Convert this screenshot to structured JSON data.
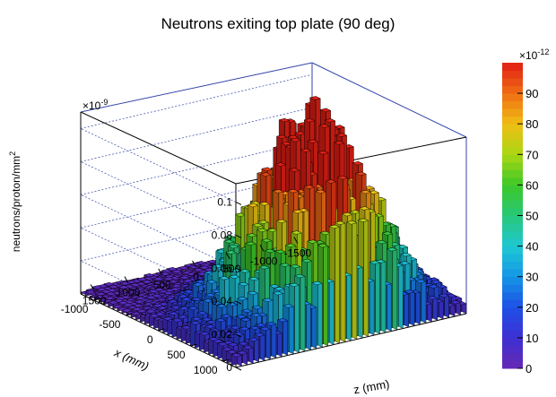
{
  "chart_data": {
    "type": "lego3d",
    "title": "Neutrons exiting top plate (90 deg)",
    "xlabel": "x (mm)",
    "ylabel": "z (mm)",
    "zlabel": "neutrons/proton/mm",
    "zlabel_sup": "2",
    "x_range": [
      -1200,
      1200
    ],
    "y_range": [
      -1700,
      1700
    ],
    "z_range": [
      0,
      0.11
    ],
    "x_ticks": [
      "1000",
      "500",
      "0",
      "-500",
      "-1000"
    ],
    "y_ticks": [
      "1500",
      "1000",
      "500",
      "0",
      "-500",
      "-1000",
      "-1500"
    ],
    "z_ticks": [
      "0",
      "0.02",
      "0.04",
      "0.06",
      "0.08",
      "0.1"
    ],
    "z_exponent": "×10",
    "z_exponent_power": "-9",
    "color_scale": {
      "exponent": "×10",
      "exponent_power": "-12",
      "ticks": [
        "0",
        "10",
        "20",
        "30",
        "40",
        "50",
        "60",
        "70",
        "80",
        "90"
      ],
      "max": 100
    },
    "surface": {
      "peak_value": 0.097,
      "peak_x": 600,
      "peak_y": 0,
      "spread_x": 500,
      "spread_y": 750,
      "baseline": 0.002,
      "bins_x": 34,
      "bins_y": 40
    },
    "grid": true
  }
}
